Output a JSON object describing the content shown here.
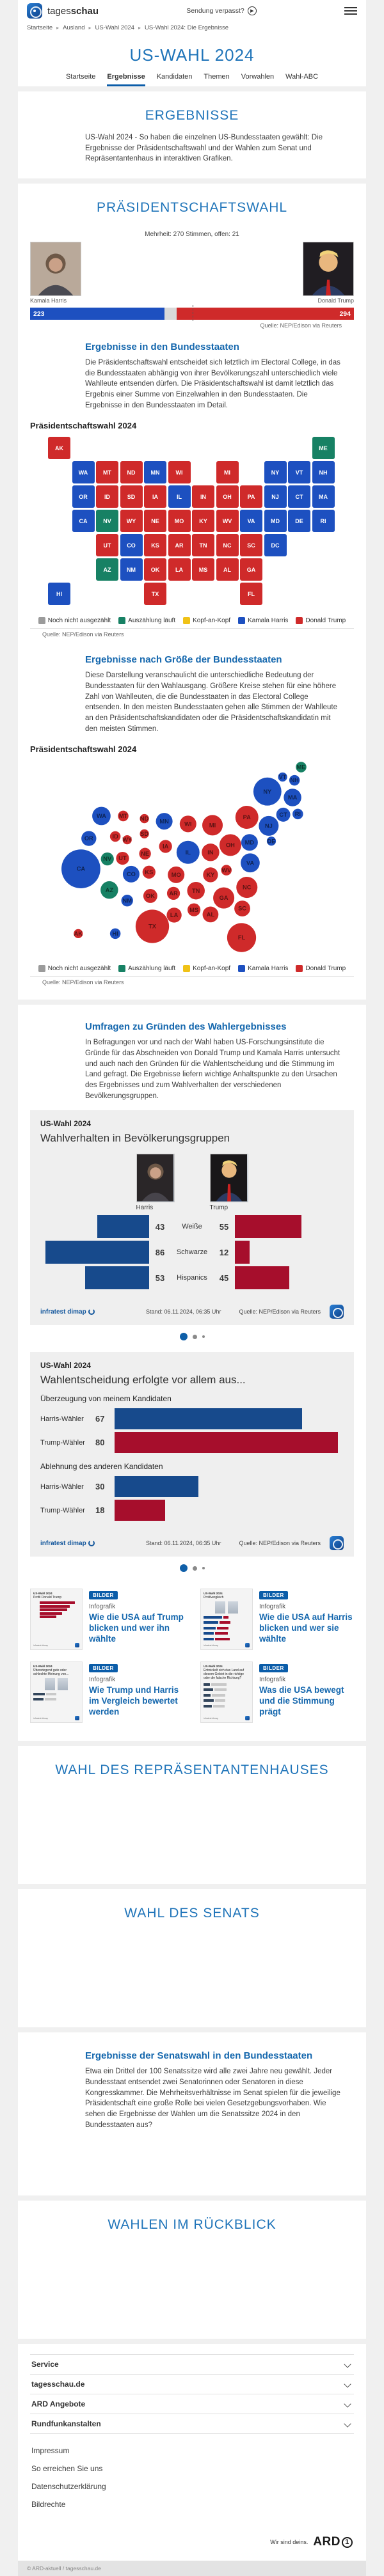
{
  "header": {
    "brand_regular": "tages",
    "brand_bold": "schau",
    "watch_label": "Sendung verpasst?",
    "breadcrumb": [
      "Startseite",
      "Ausland",
      "US-Wahl 2024",
      "US-Wahl 2024: Die Ergebnisse"
    ]
  },
  "hub": {
    "title": "US-WAHL 2024",
    "tabs": [
      {
        "label": "Startseite",
        "active": false
      },
      {
        "label": "Ergebnisse",
        "active": true
      },
      {
        "label": "Kandidaten",
        "active": false
      },
      {
        "label": "Themen",
        "active": false
      },
      {
        "label": "Vorwahlen",
        "active": false
      },
      {
        "label": "Wahl-ABC",
        "active": false
      }
    ]
  },
  "ergebnisse": {
    "title": "ERGEBNISSE",
    "intro": "US-Wahl 2024 - So haben die einzelnen US-Bundesstaaten gewählt: Die Ergebnisse der Präsidentschaftswahl und der Wahlen zum Senat und Repräsentantenhaus in interaktiven Grafiken."
  },
  "praesident": {
    "title": "PRÄSIDENTSCHAFTSWAHL",
    "majority_note": "Mehrheit: 270 Stimmen, offen: 21",
    "harris_name": "Kamala Harris",
    "trump_name": "Donald Trump",
    "source": "Quelle: NEP/Edison via Reuters",
    "states_heading": "Ergebnisse in den Bundesstaaten",
    "states_text": "Die Präsidentschaftswahl entscheidet sich letztlich im Electoral College, in das die Bundesstaaten abhängig von ihrer Bevölkerungszahl unterschiedlich viele Wahlleute entsenden dürfen. Die Präsidentschaftswahl ist damit letztlich das Ergebnis einer Summe von Einzelwahlen in den Bundesstaaten. Die Ergebnisse in den Bundesstaaten im Detail.",
    "map_title": "Präsidentschaftswahl 2024",
    "size_heading": "Ergebnisse nach Größe der Bundesstaaten",
    "size_text": "Diese Darstellung veranschaulicht die unterschiedliche Bedeutung der Bundesstaaten für den Wahlausgang. Größere Kreise stehen für eine höhere Zahl von Wahlleuten, die die Bundesstaaten in das Electoral College entsenden. In den meisten Bundesstaaten gehen alle Stimmen der Wahlleute an den Präsidentschaftskandidaten oder die Präsidentschaftskandidatin mit den meisten Stimmen.",
    "bubble_title": "Präsidentschaftswahl 2024"
  },
  "legend": [
    {
      "label": "Noch nicht ausgezählt",
      "color": "#9b9b9b"
    },
    {
      "label": "Auszählung läuft",
      "color": "#178164"
    },
    {
      "label": "Kopf-an-Kopf",
      "color": "#f0c217"
    },
    {
      "label": "Kamala Harris",
      "color": "#1d50c0"
    },
    {
      "label": "Donald Trump",
      "color": "#cf2a2a"
    }
  ],
  "umfragen": {
    "heading": "Umfragen zu Gründen des Wahlergebnisses",
    "text": "In Befragungen vor und nach der Wahl haben US-Forschungsinstitute die Gründe für das Abschneiden von Donald Trump und Kamala Harris untersucht und auch nach den Gründen für die Wahlentscheidung und die Stimmung im Land gefragt. Die Ergebnisse liefern wichtige Anhaltspunkte zu den Ursachen des Ergebnisses und zum Wahlverhalten der verschiedenen Bevölkerungsgruppen."
  },
  "card1": {
    "kicker": "US-Wahl 2024",
    "title": "Wahlverhalten in Bevölkerungsgruppen",
    "harris_label": "Harris",
    "trump_label": "Trump",
    "brand": "infratest dimap",
    "stand": "Stand:  06.11.2024, 06:35 Uhr",
    "source": "Quelle: NEP/Edison via Reuters"
  },
  "card2": {
    "kicker": "US-Wahl 2024",
    "title": "Wahlentscheidung erfolgte vor allem aus...",
    "brand": "infratest dimap",
    "stand": "Stand:  06.11.2024, 06:35 Uhr",
    "source": "Quelle: NEP/Edison via Reuters"
  },
  "teasers": [
    {
      "badge": "BILDER",
      "type": "Infografik",
      "title": "Wie die USA auf Trump blicken und wer ihn wählte",
      "thumb": {
        "kicker": "US-Wahl 2024",
        "title": "Profil Donald Trump",
        "style": "red-bars",
        "bars": [
          0.95,
          0.82,
          0.74,
          0.6,
          0.45
        ]
      }
    },
    {
      "badge": "BILDER",
      "type": "Infografik",
      "title": "Wie die USA auf Harris blicken und wer sie wählte",
      "thumb": {
        "kicker": "US-Wahl 2024",
        "title": "Profilvergleich",
        "style": "pair-bars",
        "bars": [
          [
            0.9,
            0.25
          ],
          [
            0.72,
            0.5
          ],
          [
            0.6,
            0.55
          ],
          [
            0.5,
            0.62
          ],
          [
            0.48,
            0.72
          ]
        ]
      }
    },
    {
      "badge": "BILDER",
      "type": "Infografik",
      "title": "Wie Trump und Harris im Vergleich bewertet werden",
      "thumb": {
        "kicker": "US-Wahl 2024",
        "title": "Überwiegend gute oder schlechte Meinung von...",
        "style": "opinion",
        "bars": [
          [
            0.55,
            0.5
          ],
          [
            0.5,
            0.55
          ]
        ]
      }
    },
    {
      "badge": "BILDER",
      "type": "Infografik",
      "title": "Was die USA bewegt und die Stimmung prägt",
      "thumb": {
        "kicker": "US-Wahl 2024",
        "title": "Entwickelt sich das Land auf diesem Gebiet in die richtige oder die falsche Richtung?",
        "style": "direction",
        "bars": [
          [
            0.3,
            0.75
          ],
          [
            0.45,
            0.6
          ],
          [
            0.35,
            0.65
          ],
          [
            0.5,
            0.5
          ],
          [
            0.4,
            0.55
          ]
        ]
      }
    }
  ],
  "house": {
    "title": "WAHL DES REPRÄSENTANTENHAUSES"
  },
  "senate": {
    "title": "WAHL DES SENATS"
  },
  "senate_states": {
    "heading": "Ergebnisse der Senatswahl in den Bundesstaaten",
    "text": "Etwa ein Drittel der 100 Senatssitze wird alle zwei Jahre neu gewählt. Jeder Bundesstaat entsendet zwei Senatorinnen oder Senatoren in diese Kongresskammer. Die Mehrheitsverhältnisse im Senat spielen für die jeweilige Präsidentschaft eine große Rolle bei vielen Gesetzgebungsvorhaben. Wie sehen die Ergebnisse der Wahlen um die Senatssitze 2024 in den Bundesstaaten aus?"
  },
  "retro": {
    "title": "WAHLEN IM RÜCKBLICK"
  },
  "footer": {
    "accordions": [
      "Service",
      "tagesschau.de",
      "ARD Angebote",
      "Rundfunkanstalten"
    ],
    "links": [
      "Impressum",
      "So erreichen Sie uns",
      "Datenschutzerklärung",
      "Bildrechte"
    ],
    "claim": "Wir sind deins.",
    "ard": "ARD",
    "copyright": "© ARD-aktuell / tagesschau.de"
  },
  "chart_data": [
    {
      "id": "electoral_bar",
      "type": "bar",
      "title": "Präsidentschaftswahl Electoral College",
      "annotation": "Mehrheit: 270 Stimmen, offen: 21",
      "total": 538,
      "majority": 270,
      "series": [
        {
          "name": "Kamala Harris",
          "value": 223,
          "color": "#1d50c0"
        },
        {
          "name": "offen",
          "value": 21,
          "color": "#d9d9d9"
        },
        {
          "name": "Donald Trump",
          "value": 294,
          "color": "#cf2a2a"
        }
      ],
      "source": "Quelle: NEP/Edison via Reuters"
    },
    {
      "id": "state_map",
      "type": "map",
      "title": "Präsidentschaftswahl 2024",
      "legend": [
        "Noch nicht ausgezählt",
        "Auszählung läuft",
        "Kopf-an-Kopf",
        "Kamala Harris",
        "Donald Trump"
      ],
      "results": {
        "harris": [
          "WA",
          "OR",
          "CA",
          "CO",
          "NM",
          "MN",
          "IL",
          "VA",
          "NY",
          "VT",
          "NH",
          "MA",
          "CT",
          "RI",
          "NJ",
          "DE",
          "MD",
          "DC",
          "HI"
        ],
        "trump": [
          "ID",
          "MT",
          "WY",
          "ND",
          "SD",
          "NE",
          "KS",
          "OK",
          "TX",
          "UT",
          "IA",
          "MO",
          "AR",
          "LA",
          "WI",
          "MI",
          "IN",
          "OH",
          "KY",
          "TN",
          "MS",
          "AL",
          "GA",
          "FL",
          "SC",
          "NC",
          "WV",
          "PA",
          "AK"
        ],
        "counting": [
          "ME",
          "NV",
          "AZ"
        ],
        "tossup": [],
        "pending": []
      },
      "source": "Quelle: NEP/Edison via Reuters"
    },
    {
      "id": "bubble_map",
      "type": "scatter",
      "title": "Präsidentschaftswahl 2024",
      "note": "Kreisgröße entspricht Zahl der Wahlleute",
      "states": [
        {
          "abbr": "ME",
          "ev": 4,
          "winner": "counting",
          "x": 365,
          "y": 14
        },
        {
          "abbr": "NY",
          "ev": 28,
          "winner": "harris",
          "x": 314,
          "y": 51
        },
        {
          "abbr": "MA",
          "ev": 11,
          "winner": "harris",
          "x": 352,
          "y": 60
        },
        {
          "abbr": "VT",
          "ev": 3,
          "winner": "harris",
          "x": 337,
          "y": 29
        },
        {
          "abbr": "NH",
          "ev": 4,
          "winner": "harris",
          "x": 355,
          "y": 34
        },
        {
          "abbr": "WA",
          "ev": 12,
          "winner": "harris",
          "x": 63,
          "y": 88
        },
        {
          "abbr": "MT",
          "ev": 4,
          "winner": "trump",
          "x": 96,
          "y": 88
        },
        {
          "abbr": "ND",
          "ev": 3,
          "winner": "trump",
          "x": 128,
          "y": 92
        },
        {
          "abbr": "MN",
          "ev": 10,
          "winner": "harris",
          "x": 158,
          "y": 96
        },
        {
          "abbr": "WI",
          "ev": 10,
          "winner": "trump",
          "x": 194,
          "y": 100
        },
        {
          "abbr": "MI",
          "ev": 15,
          "winner": "trump",
          "x": 231,
          "y": 102
        },
        {
          "abbr": "PA",
          "ev": 19,
          "winner": "trump",
          "x": 283,
          "y": 90
        },
        {
          "abbr": "NJ",
          "ev": 14,
          "winner": "harris",
          "x": 316,
          "y": 103
        },
        {
          "abbr": "CT",
          "ev": 7,
          "winner": "harris",
          "x": 338,
          "y": 86
        },
        {
          "abbr": "RI",
          "ev": 4,
          "winner": "harris",
          "x": 360,
          "y": 85
        },
        {
          "abbr": "OR",
          "ev": 8,
          "winner": "harris",
          "x": 44,
          "y": 122
        },
        {
          "abbr": "ID",
          "ev": 4,
          "winner": "trump",
          "x": 84,
          "y": 119
        },
        {
          "abbr": "WY",
          "ev": 3,
          "winner": "trump",
          "x": 102,
          "y": 124
        },
        {
          "abbr": "SD",
          "ev": 3,
          "winner": "trump",
          "x": 128,
          "y": 115
        },
        {
          "abbr": "IA",
          "ev": 6,
          "winner": "trump",
          "x": 160,
          "y": 134
        },
        {
          "abbr": "OH",
          "ev": 17,
          "winner": "trump",
          "x": 258,
          "y": 132
        },
        {
          "abbr": "MD",
          "ev": 10,
          "winner": "harris",
          "x": 287,
          "y": 128
        },
        {
          "abbr": "DE",
          "ev": 3,
          "winner": "harris",
          "x": 320,
          "y": 126
        },
        {
          "abbr": "NV",
          "ev": 6,
          "winner": "counting",
          "x": 72,
          "y": 153
        },
        {
          "abbr": "UT",
          "ev": 6,
          "winner": "trump",
          "x": 95,
          "y": 152
        },
        {
          "abbr": "NE",
          "ev": 5,
          "winner": "trump",
          "x": 129,
          "y": 145
        },
        {
          "abbr": "IL",
          "ev": 19,
          "winner": "harris",
          "x": 194,
          "y": 143
        },
        {
          "abbr": "IN",
          "ev": 11,
          "winner": "trump",
          "x": 228,
          "y": 143
        },
        {
          "abbr": "CA",
          "ev": 54,
          "winner": "harris",
          "x": 32,
          "y": 168
        },
        {
          "abbr": "VA",
          "ev": 13,
          "winner": "harris",
          "x": 288,
          "y": 159
        },
        {
          "abbr": "CO",
          "ev": 10,
          "winner": "harris",
          "x": 108,
          "y": 176
        },
        {
          "abbr": "KS",
          "ev": 6,
          "winner": "trump",
          "x": 135,
          "y": 173
        },
        {
          "abbr": "MO",
          "ev": 10,
          "winner": "trump",
          "x": 176,
          "y": 177
        },
        {
          "abbr": "KY",
          "ev": 8,
          "winner": "trump",
          "x": 228,
          "y": 177
        },
        {
          "abbr": "WV",
          "ev": 4,
          "winner": "trump",
          "x": 252,
          "y": 170
        },
        {
          "abbr": "NC",
          "ev": 16,
          "winner": "trump",
          "x": 283,
          "y": 196
        },
        {
          "abbr": "AZ",
          "ev": 11,
          "winner": "counting",
          "x": 75,
          "y": 200
        },
        {
          "abbr": "NM",
          "ev": 5,
          "winner": "harris",
          "x": 102,
          "y": 216
        },
        {
          "abbr": "OK",
          "ev": 7,
          "winner": "trump",
          "x": 137,
          "y": 209
        },
        {
          "abbr": "AR",
          "ev": 6,
          "winner": "trump",
          "x": 172,
          "y": 205
        },
        {
          "abbr": "TN",
          "ev": 11,
          "winner": "trump",
          "x": 206,
          "y": 201
        },
        {
          "abbr": "GA",
          "ev": 16,
          "winner": "trump",
          "x": 248,
          "y": 212
        },
        {
          "abbr": "SC",
          "ev": 9,
          "winner": "trump",
          "x": 276,
          "y": 228
        },
        {
          "abbr": "MS",
          "ev": 6,
          "winner": "trump",
          "x": 203,
          "y": 230
        },
        {
          "abbr": "AL",
          "ev": 9,
          "winner": "trump",
          "x": 228,
          "y": 237
        },
        {
          "abbr": "LA",
          "ev": 8,
          "winner": "trump",
          "x": 173,
          "y": 238
        },
        {
          "abbr": "TX",
          "ev": 40,
          "winner": "trump",
          "x": 140,
          "y": 255
        },
        {
          "abbr": "FL",
          "ev": 30,
          "winner": "trump",
          "x": 275,
          "y": 272
        },
        {
          "abbr": "AK",
          "ev": 3,
          "winner": "trump",
          "x": 28,
          "y": 266
        },
        {
          "abbr": "HI",
          "ev": 4,
          "winner": "harris",
          "x": 84,
          "y": 266
        }
      ],
      "source": "Quelle: NEP/Edison via Reuters"
    },
    {
      "id": "demografie",
      "type": "bar",
      "title": "Wahlverhalten in Bevölkerungsgruppen",
      "categories": [
        "Weiße",
        "Schwarze",
        "Hispanics"
      ],
      "series": [
        {
          "name": "Harris",
          "values": [
            43,
            86,
            53
          ],
          "color": "#174a8c"
        },
        {
          "name": "Trump",
          "values": [
            55,
            12,
            45
          ],
          "color": "#a60e2c"
        }
      ],
      "xlim": [
        0,
        100
      ]
    },
    {
      "id": "gruende",
      "type": "bar",
      "title": "Wahlentscheidung erfolgte vor allem aus...",
      "groups": [
        {
          "label": "Überzeugung von meinem Kandidaten",
          "rows": [
            {
              "name": "Harris-Wähler",
              "value": 67,
              "color": "#174a8c"
            },
            {
              "name": "Trump-Wähler",
              "value": 80,
              "color": "#a60e2c"
            }
          ]
        },
        {
          "label": "Ablehnung des anderen Kandidaten",
          "rows": [
            {
              "name": "Harris-Wähler",
              "value": 30,
              "color": "#174a8c"
            },
            {
              "name": "Trump-Wähler",
              "value": 18,
              "color": "#a60e2c"
            }
          ]
        }
      ],
      "xlim": [
        0,
        100
      ]
    }
  ]
}
